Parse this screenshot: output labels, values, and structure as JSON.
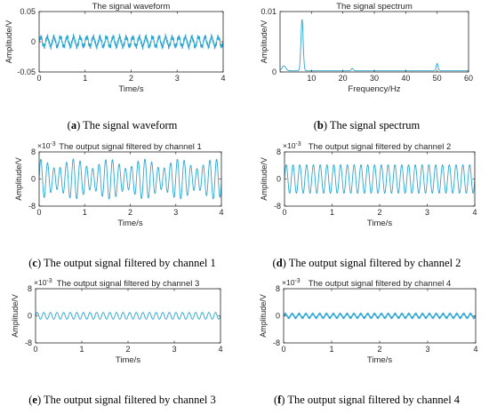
{
  "figure": {
    "panels": [
      {
        "id": "a",
        "letter": "a",
        "caption": "The signal waveform"
      },
      {
        "id": "b",
        "letter": "b",
        "caption": "The signal spectrum"
      },
      {
        "id": "c",
        "letter": "c",
        "caption": "The output signal filtered by channel 1"
      },
      {
        "id": "d",
        "letter": "d",
        "caption": "The output signal filtered by channel 2"
      },
      {
        "id": "e",
        "letter": "e",
        "caption": "The output signal filtered by channel 3"
      },
      {
        "id": "f",
        "letter": "f",
        "caption": "The output signal filtered by channel 4"
      }
    ]
  },
  "colors": {
    "trace": "#2aa6d1",
    "axis": "#262626",
    "caption": "#000000"
  },
  "chart_data": [
    {
      "id": "a",
      "type": "line",
      "title": "The signal waveform",
      "xlabel": "Time/s",
      "ylabel": "Amplitude/V",
      "xlim": [
        0,
        4
      ],
      "ylim": [
        -0.05,
        0.05
      ],
      "xticks": [
        0,
        1,
        2,
        3,
        4
      ],
      "xticklabels": [
        "0",
        "1",
        "2",
        "3",
        "4"
      ],
      "yticks": [
        -0.05,
        0,
        0.05
      ],
      "yticklabels": [
        "-0.05",
        "0",
        "0.05"
      ],
      "exponent": "",
      "signal": {
        "components": [
          {
            "freq": 7,
            "amp": 0.008
          },
          {
            "freq": 50,
            "amp": 0.003
          },
          {
            "freq": 23,
            "amp": 0.0015
          }
        ],
        "duration": 4
      }
    },
    {
      "id": "b",
      "type": "line",
      "title": "The signal spectrum",
      "xlabel": "Frequency/Hz",
      "ylabel": "Amplitude/V",
      "xlim": [
        0,
        60
      ],
      "ylim": [
        0,
        0.01
      ],
      "xticks": [
        10,
        20,
        30,
        40,
        50,
        60
      ],
      "xticklabels": [
        "10",
        "20",
        "30",
        "40",
        "50",
        "60"
      ],
      "yticks": [
        0,
        0.01
      ],
      "yticklabels": [
        "0",
        "0.01"
      ],
      "exponent": "",
      "spectrum": {
        "baseline": 0.0002,
        "peaks": [
          {
            "freq": 1.2,
            "amp": 0.0008,
            "width": 0.6
          },
          {
            "freq": 7,
            "amp": 0.0085,
            "width": 0.35
          },
          {
            "freq": 23,
            "amp": 0.0004,
            "width": 0.3
          },
          {
            "freq": 50,
            "amp": 0.0012,
            "width": 0.3
          }
        ]
      }
    },
    {
      "id": "c",
      "type": "line",
      "title": "The output signal filtered by channel 1",
      "xlabel": "Time/s",
      "ylabel": "Amplitude/V",
      "xlim": [
        0,
        4
      ],
      "ylim": [
        -8,
        8
      ],
      "xticks": [
        0,
        1,
        2,
        3,
        4
      ],
      "xticklabels": [
        "0",
        "1",
        "2",
        "3",
        "4"
      ],
      "yticks": [
        -8,
        0,
        8
      ],
      "yticklabels": [
        "-8",
        "0",
        "8"
      ],
      "exponent": "-3",
      "signal": {
        "components": [
          {
            "freq": 7,
            "amp": 4.5
          },
          {
            "freq": 5.7,
            "amp": 1.4
          }
        ],
        "duration": 4
      }
    },
    {
      "id": "d",
      "type": "line",
      "title": "The output signal filtered by channel 2",
      "xlabel": "Time/s",
      "ylabel": "Amplitude/V",
      "xlim": [
        0,
        4
      ],
      "ylim": [
        -8,
        8
      ],
      "xticks": [
        0,
        1,
        2,
        3,
        4
      ],
      "xticklabels": [
        "0",
        "1",
        "2",
        "3",
        "4"
      ],
      "yticks": [
        -8,
        0,
        8
      ],
      "yticklabels": [
        "-8",
        "0",
        "8"
      ],
      "exponent": "-3",
      "signal": {
        "components": [
          {
            "freq": 7,
            "amp": 4.2
          }
        ],
        "duration": 4
      }
    },
    {
      "id": "e",
      "type": "line",
      "title": "The output signal filtered by channel 3",
      "xlabel": "Time/s",
      "ylabel": "Amplitude/V",
      "xlim": [
        0,
        4
      ],
      "ylim": [
        -8,
        8
      ],
      "xticks": [
        0,
        1,
        2,
        3,
        4
      ],
      "xticklabels": [
        "0",
        "1",
        "2",
        "3",
        "4"
      ],
      "yticks": [
        -8,
        0,
        8
      ],
      "yticklabels": [
        "-8",
        "0",
        "8"
      ],
      "exponent": "-3",
      "signal": {
        "components": [
          {
            "freq": 7,
            "amp": 1.0
          }
        ],
        "duration": 4
      }
    },
    {
      "id": "f",
      "type": "line",
      "title": "The output signal filtered by channel 4",
      "xlabel": "Time/s",
      "ylabel": "Amplitude/V",
      "xlim": [
        0,
        4
      ],
      "ylim": [
        -8,
        8
      ],
      "xticks": [
        0,
        1,
        2,
        3,
        4
      ],
      "xticklabels": [
        "0",
        "1",
        "2",
        "3",
        "4"
      ],
      "yticks": [
        -8,
        0,
        8
      ],
      "yticklabels": [
        "-8",
        "0",
        "8"
      ],
      "exponent": "-3",
      "signal": {
        "components": [
          {
            "freq": 7,
            "amp": 0.6
          },
          {
            "freq": 50,
            "amp": 0.25
          }
        ],
        "duration": 4
      }
    }
  ]
}
